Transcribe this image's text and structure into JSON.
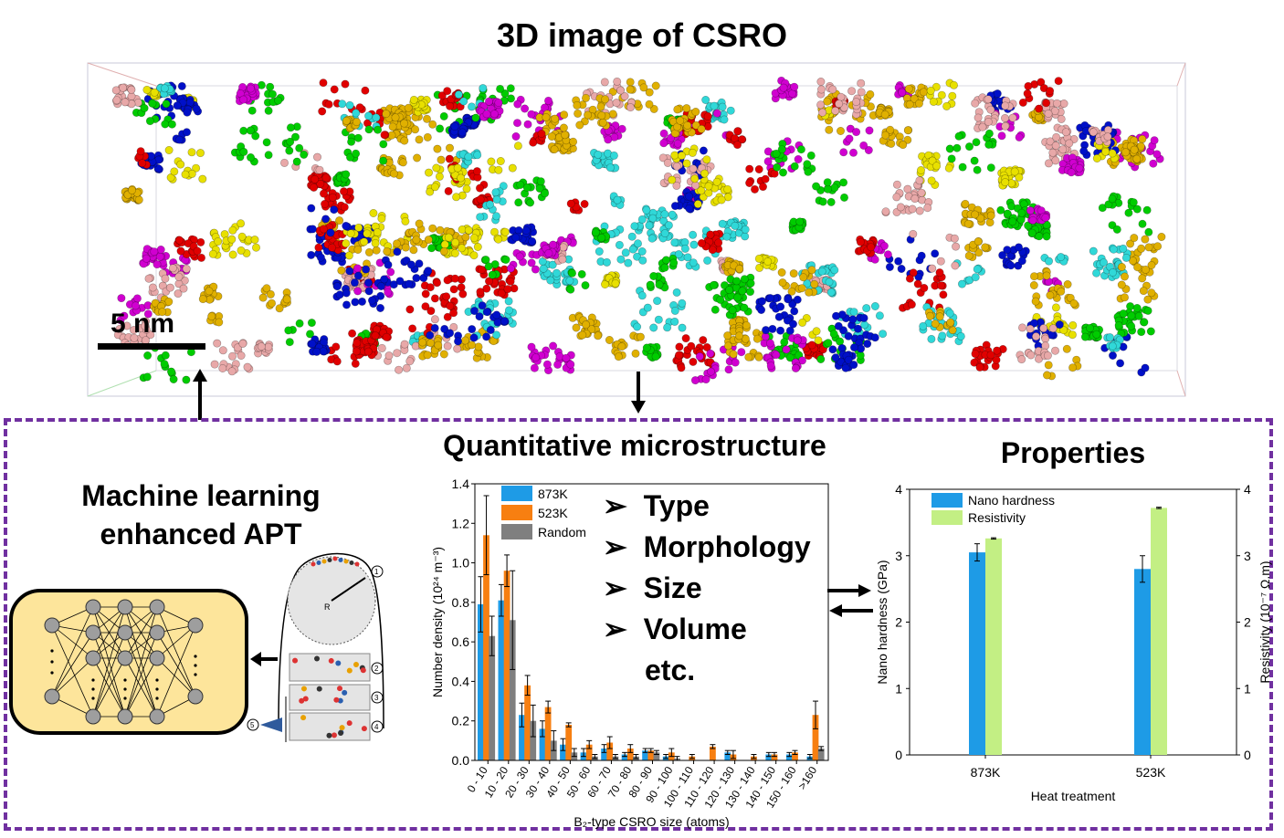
{
  "title": "3D image of CSRO",
  "scale_bar_label": "5 nm",
  "ml_title_line1": "Machine learning",
  "ml_title_line2": "enhanced APT",
  "quant_title": "Quantitative microstructure",
  "bullets": [
    "Type",
    "Morphology",
    "Size",
    "Volume",
    "etc."
  ],
  "bullet_glyph": "➢",
  "apt_labels": [
    "1",
    "2",
    "3",
    "4",
    "5",
    "R"
  ],
  "props_title": "Properties",
  "colors": {
    "c873": "#1e9be6",
    "c523": "#f77f11",
    "cRandom": "#7f7f7f",
    "hardness": "#1e9be6",
    "resistivity": "#c3ef84",
    "dash": "#7030a0"
  },
  "chart_data": [
    {
      "type": "bar",
      "xlabel": "B₂-type CSRO size (atoms)",
      "ylabel": "Number density (10²⁴ m⁻³)",
      "ylim": [
        0,
        1.4
      ],
      "yticks": [
        "0.0",
        "0.2",
        "0.4",
        "0.6",
        "0.8",
        "1.0",
        "1.2",
        "1.4"
      ],
      "categories": [
        "0 - 10",
        "10 - 20",
        "20 - 30",
        "30 - 40",
        "40 - 50",
        "50 - 60",
        "60 - 70",
        "70 - 80",
        "80 - 90",
        "90 - 100",
        "100 - 110",
        "110 - 120",
        "120 - 130",
        "130 - 140",
        "140 - 150",
        "150 - 160",
        ">160"
      ],
      "legend_position": "top-left",
      "series": [
        {
          "name": "873K",
          "values": [
            0.79,
            0.81,
            0.23,
            0.16,
            0.08,
            0.04,
            0.06,
            0.03,
            0.05,
            0.02,
            0.0,
            0.0,
            0.04,
            0.0,
            0.03,
            0.03,
            0.02
          ],
          "err": [
            0.14,
            0.08,
            0.06,
            0.04,
            0.03,
            0.02,
            0.02,
            0.01,
            0.01,
            0.01,
            0.0,
            0.0,
            0.01,
            0.0,
            0.01,
            0.01,
            0.01
          ]
        },
        {
          "name": "523K",
          "values": [
            1.14,
            0.96,
            0.38,
            0.27,
            0.18,
            0.08,
            0.09,
            0.06,
            0.05,
            0.04,
            0.02,
            0.07,
            0.03,
            0.02,
            0.03,
            0.04,
            0.23
          ],
          "err": [
            0.2,
            0.08,
            0.05,
            0.03,
            0.01,
            0.02,
            0.03,
            0.02,
            0.01,
            0.02,
            0.01,
            0.01,
            0.02,
            0.01,
            0.01,
            0.01,
            0.07
          ]
        },
        {
          "name": "Random",
          "values": [
            0.63,
            0.71,
            0.2,
            0.1,
            0.04,
            0.02,
            0.02,
            0.02,
            0.04,
            0.01,
            0.0,
            0.0,
            0.0,
            0.0,
            0.0,
            0.0,
            0.06
          ],
          "err": [
            0.1,
            0.25,
            0.08,
            0.05,
            0.02,
            0.01,
            0.01,
            0.01,
            0.01,
            0.01,
            0.0,
            0.0,
            0.0,
            0.0,
            0.0,
            0.0,
            0.01
          ]
        }
      ]
    },
    {
      "type": "bar",
      "xlabel": "Heat treatment",
      "ylabel_left": "Nano hardness (GPa)",
      "ylabel_right": "Resistivity (10⁻⁷ Ω.m)",
      "ylim_left": [
        0,
        4
      ],
      "ylim_right": [
        0,
        4
      ],
      "yticks": [
        "0",
        "1",
        "2",
        "3",
        "4"
      ],
      "categories": [
        "873K",
        "523K"
      ],
      "legend_position": "top-left",
      "series": [
        {
          "name": "Nano hardness",
          "axis": "left",
          "values": [
            3.05,
            2.8
          ],
          "err": [
            0.13,
            0.2
          ]
        },
        {
          "name": "Resistivity",
          "axis": "right",
          "values": [
            3.26,
            3.72
          ],
          "err": [
            0.01,
            0.01
          ]
        }
      ]
    }
  ]
}
